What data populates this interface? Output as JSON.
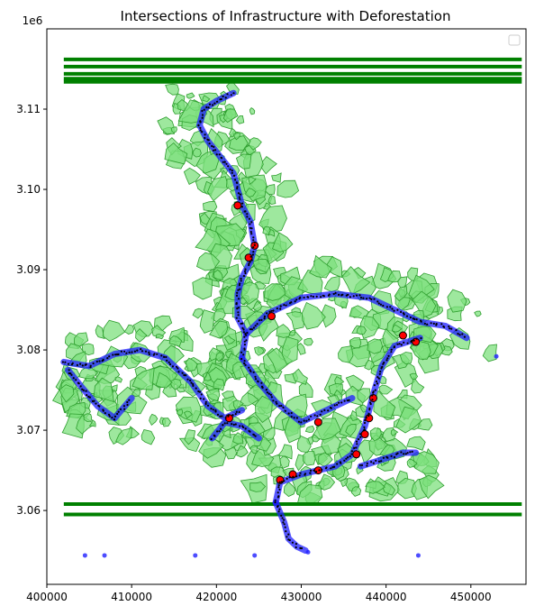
{
  "chart_data": {
    "type": "scatter",
    "title": "Intersections of Infrastructure with Deforestation",
    "xlabel": "",
    "ylabel": "",
    "y_offset_label": "1e6",
    "xlim": [
      400000,
      456500
    ],
    "ylim": [
      3050800,
      3120000
    ],
    "x_ticks": [
      400000,
      410000,
      420000,
      430000,
      440000,
      450000
    ],
    "x_tick_labels": [
      "400000",
      "410000",
      "420000",
      "430000",
      "440000",
      "450000"
    ],
    "y_ticks": [
      3060000,
      3070000,
      3080000,
      3090000,
      3100000,
      3110000
    ],
    "y_tick_labels": [
      "3.06",
      "3.07",
      "3.08",
      "3.09",
      "3.10",
      "3.11"
    ],
    "legend": {
      "position": "top-right",
      "entries": []
    },
    "colors": {
      "forest_fill": "#7ee07e",
      "forest_edge": "#2e9e2e",
      "band": "#008000",
      "infrastructure": "#1f1fff",
      "intersection": "#ff0000",
      "points": "#000000"
    },
    "horizontal_bands": [
      3116200,
      3115300,
      3114400,
      3113800,
      3113400,
      3060800,
      3059500
    ],
    "infrastructure_lines": [
      {
        "x": [
          422000,
          420000,
          418500,
          418000,
          419000,
          420500,
          422000,
          422500,
          423000,
          424000,
          424500
        ],
        "y": [
          3112000,
          3111000,
          3110000,
          3108000,
          3106000,
          3104000,
          3102000,
          3100000,
          3098000,
          3096000,
          3093000
        ]
      },
      {
        "x": [
          424500,
          424000,
          423000,
          422500,
          422500,
          423500,
          423000
        ],
        "y": [
          3093000,
          3091000,
          3089000,
          3087000,
          3084000,
          3082000,
          3079000
        ]
      },
      {
        "x": [
          423500,
          426000,
          430000,
          434000,
          438000,
          441000,
          444000,
          447000,
          449500
        ],
        "y": [
          3082000,
          3084500,
          3086500,
          3087000,
          3086500,
          3085000,
          3083500,
          3083000,
          3081500
        ]
      },
      {
        "x": [
          444000,
          441000,
          439500,
          438500,
          437500,
          436000,
          434000,
          430000,
          427500,
          427000
        ],
        "y": [
          3081500,
          3080500,
          3078000,
          3074500,
          3070500,
          3067000,
          3065500,
          3064500,
          3063500,
          3061000
        ]
      },
      {
        "x": [
          427000,
          428000,
          428500,
          429500,
          430500
        ],
        "y": [
          3061000,
          3058500,
          3056500,
          3055500,
          3055000
        ]
      },
      {
        "x": [
          402000,
          405000,
          408000,
          411000,
          414000,
          417000,
          419000,
          421000,
          423000
        ],
        "y": [
          3078500,
          3078000,
          3079500,
          3080000,
          3079000,
          3076000,
          3073000,
          3071500,
          3072500
        ]
      },
      {
        "x": [
          402500,
          404000,
          406000,
          408000,
          410000
        ],
        "y": [
          3077500,
          3075500,
          3073000,
          3071500,
          3074000
        ]
      },
      {
        "x": [
          423000,
          425000,
          427000,
          430000,
          433000,
          436000
        ],
        "y": [
          3079000,
          3076000,
          3073500,
          3071000,
          3072500,
          3074000
        ]
      },
      {
        "x": [
          437000,
          440000,
          442000,
          443500
        ],
        "y": [
          3065500,
          3066500,
          3067200,
          3067200
        ]
      },
      {
        "x": [
          419500,
          421000,
          423000,
          425000
        ],
        "y": [
          3069000,
          3071000,
          3070500,
          3069000
        ]
      }
    ],
    "intersection_points": [
      {
        "x": 424500,
        "y": 3093000
      },
      {
        "x": 423800,
        "y": 3091500
      },
      {
        "x": 422500,
        "y": 3098000
      },
      {
        "x": 426500,
        "y": 3084200
      },
      {
        "x": 442000,
        "y": 3081800
      },
      {
        "x": 443500,
        "y": 3081000
      },
      {
        "x": 438500,
        "y": 3074000
      },
      {
        "x": 438000,
        "y": 3071500
      },
      {
        "x": 437500,
        "y": 3069500
      },
      {
        "x": 436500,
        "y": 3067000
      },
      {
        "x": 432000,
        "y": 3065000
      },
      {
        "x": 429000,
        "y": 3064500
      },
      {
        "x": 427500,
        "y": 3063800
      },
      {
        "x": 421500,
        "y": 3071500
      },
      {
        "x": 432000,
        "y": 3071000
      }
    ],
    "isolated_points": [
      {
        "x": 404500,
        "y": 3054400
      },
      {
        "x": 406800,
        "y": 3054400
      },
      {
        "x": 417500,
        "y": 3054400
      },
      {
        "x": 424500,
        "y": 3054400
      },
      {
        "x": 443800,
        "y": 3054400
      },
      {
        "x": 430800,
        "y": 3054800
      },
      {
        "x": 453000,
        "y": 3079200
      }
    ]
  }
}
